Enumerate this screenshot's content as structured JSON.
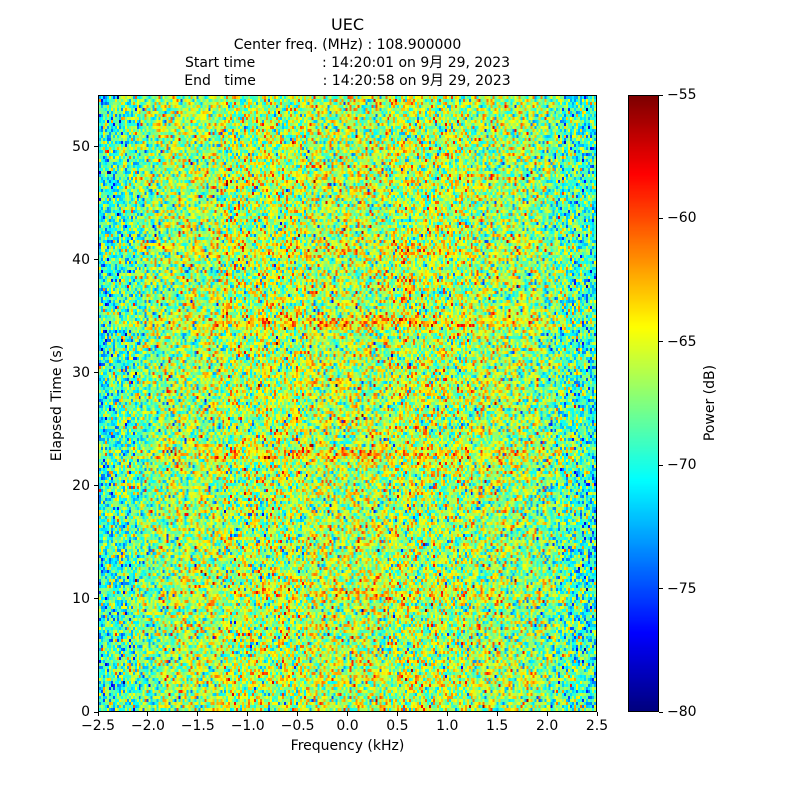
{
  "chart_data": {
    "type": "heatmap",
    "title": "UEC",
    "subtitle_lines": [
      "Center freq. (MHz) : 108.900000",
      "Start time               : 14:20:01 on 9月 29, 2023",
      "End   time               : 14:20:58 on 9月 29, 2023"
    ],
    "xlabel": "Frequency (kHz)",
    "ylabel": "Elapsed Time (s)",
    "xlim": [
      -2.5,
      2.5
    ],
    "ylim": [
      0,
      54.6
    ],
    "x_ticks": [
      {
        "v": -2.5,
        "label": "−2.5"
      },
      {
        "v": -2.0,
        "label": "−2.0"
      },
      {
        "v": -1.5,
        "label": "−1.5"
      },
      {
        "v": -1.0,
        "label": "−1.0"
      },
      {
        "v": -0.5,
        "label": "−0.5"
      },
      {
        "v": 0.0,
        "label": "0.0"
      },
      {
        "v": 0.5,
        "label": "0.5"
      },
      {
        "v": 1.0,
        "label": "1.0"
      },
      {
        "v": 1.5,
        "label": "1.5"
      },
      {
        "v": 2.0,
        "label": "2.0"
      },
      {
        "v": 2.5,
        "label": "2.5"
      }
    ],
    "y_ticks": [
      {
        "v": 0,
        "label": "0"
      },
      {
        "v": 10,
        "label": "10"
      },
      {
        "v": 20,
        "label": "20"
      },
      {
        "v": 30,
        "label": "30"
      },
      {
        "v": 40,
        "label": "40"
      },
      {
        "v": 50,
        "label": "50"
      }
    ],
    "colorbar": {
      "label": "Power (dB)",
      "colormap": "jet",
      "vmin": -80,
      "vmax": -55,
      "ticks": [
        {
          "v": -55,
          "label": "−55"
        },
        {
          "v": -60,
          "label": "−60"
        },
        {
          "v": -65,
          "label": "−65"
        },
        {
          "v": -70,
          "label": "−70"
        },
        {
          "v": -75,
          "label": "−75"
        },
        {
          "v": -80,
          "label": "−80"
        }
      ]
    },
    "heatmap": {
      "cols": 250,
      "rows": 205,
      "seed": 42,
      "noise_mean_db": -67.0,
      "noise_sigma_db": 3.2,
      "passband": {
        "center_bump_db": 0.8,
        "edge_start_khz": 1.7,
        "edge_drop_db": 3.0
      },
      "bands": [
        {
          "time_s": 34.5,
          "boost_db": 3.0,
          "sigma_s": 0.45
        },
        {
          "time_s": 22.7,
          "boost_db": 2.4,
          "sigma_s": 0.5
        },
        {
          "time_s": 40.8,
          "boost_db": 1.6,
          "sigma_s": 0.45
        },
        {
          "time_s": 10.4,
          "boost_db": 1.5,
          "sigma_s": 0.45
        },
        {
          "time_s": 47.2,
          "boost_db": 1.1,
          "sigma_s": 0.4
        },
        {
          "time_s": 28.4,
          "boost_db": 0.9,
          "sigma_s": 0.4
        },
        {
          "time_s": 2.9,
          "boost_db": 0.9,
          "sigma_s": 0.4
        }
      ]
    }
  },
  "colors": {
    "background": "#ffffff",
    "text": "#000000",
    "axis": "#000000"
  }
}
